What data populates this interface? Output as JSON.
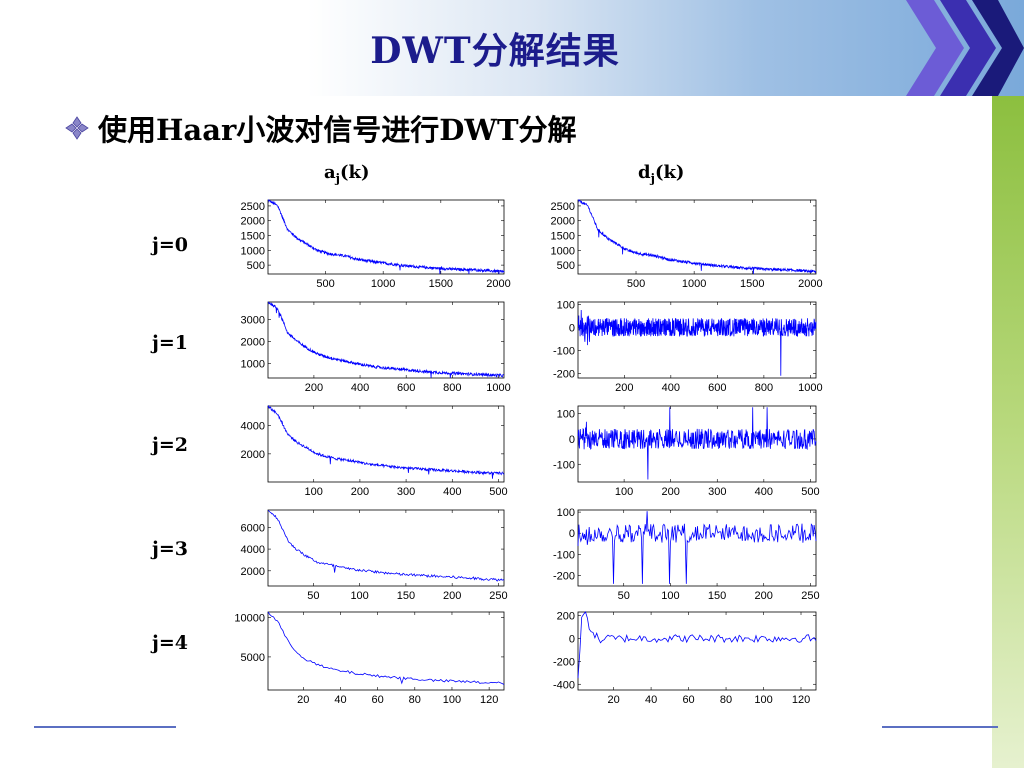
{
  "slide": {
    "title": "DWT分解结果",
    "bullet_text": "使用Haar小波对信号进行DWT分解",
    "column_headers": [
      {
        "base": "a",
        "sub": "j",
        "suffix": "(k)"
      },
      {
        "base": "d",
        "sub": "j",
        "suffix": "(k)"
      }
    ],
    "row_labels": [
      "j=0",
      "j=1",
      "j=2",
      "j=3",
      "j=4"
    ],
    "colors": {
      "title": "#1c1c8c",
      "plot_line": "#0000ff",
      "band": "#7aa9da",
      "stripe": "#8cbf3f",
      "chevron_light": "#6c5cd6",
      "chevron_dark": "#1a1a7a"
    }
  },
  "chart_data": [
    {
      "type": "line",
      "panel": "a0",
      "x_count": 2048,
      "xlim": [
        1,
        2048
      ],
      "xticks": [
        500,
        1000,
        1500,
        2000
      ],
      "yticks": [
        500,
        1000,
        1500,
        2000,
        2500
      ],
      "ylim": [
        200,
        2700
      ],
      "series": [
        {
          "values": [
            2700,
            2500,
            1700,
            1400,
            1200,
            1000,
            900,
            850,
            800,
            700,
            650,
            600,
            560,
            520,
            480,
            450,
            420,
            400,
            380,
            360,
            350,
            340,
            320,
            300,
            280
          ]
        }
      ]
    },
    {
      "type": "line",
      "panel": "d0",
      "x_count": 2048,
      "xlim": [
        1,
        2048
      ],
      "xticks": [
        500,
        1000,
        1500,
        2000
      ],
      "yticks": [
        500,
        1000,
        1500,
        2000,
        2500
      ],
      "ylim": [
        200,
        2700
      ],
      "series": [
        {
          "values": [
            2700,
            2500,
            1700,
            1400,
            1200,
            1000,
            900,
            850,
            800,
            700,
            650,
            600,
            560,
            520,
            480,
            450,
            420,
            400,
            380,
            360,
            350,
            340,
            320,
            300,
            280
          ]
        }
      ]
    },
    {
      "type": "line",
      "panel": "a1",
      "x_count": 1024,
      "xlim": [
        1,
        1024
      ],
      "xticks": [
        200,
        400,
        600,
        800,
        1000
      ],
      "yticks": [
        1000,
        2000,
        3000
      ],
      "ylim": [
        350,
        3800
      ],
      "series": [
        {
          "values": [
            3800,
            3500,
            2400,
            2000,
            1700,
            1450,
            1300,
            1200,
            1100,
            1000,
            920,
            850,
            800,
            760,
            720,
            680,
            640,
            610,
            580,
            560,
            540,
            520,
            500,
            480,
            460
          ]
        }
      ]
    },
    {
      "type": "line",
      "panel": "d1",
      "x_count": 1024,
      "xlim": [
        1,
        1024
      ],
      "xticks": [
        200,
        400,
        600,
        800,
        1000
      ],
      "yticks": [
        100,
        0,
        -100,
        -200
      ],
      "ylim": [
        -220,
        110
      ],
      "series": [
        {
          "values": [
            0
          ]
        }
      ]
    },
    {
      "type": "line",
      "panel": "a2",
      "x_count": 512,
      "xlim": [
        1,
        512
      ],
      "xticks": [
        100,
        200,
        300,
        400,
        500
      ],
      "yticks": [
        2000,
        4000
      ],
      "ylim": [
        0,
        5400
      ],
      "series": [
        {
          "values": [
            5400,
            4800,
            3400,
            2800,
            2400,
            2000,
            1800,
            1650,
            1550,
            1450,
            1300,
            1200,
            1130,
            1060,
            1000,
            950,
            900,
            860,
            820,
            780,
            740,
            700,
            660,
            630,
            600
          ]
        }
      ]
    },
    {
      "type": "line",
      "panel": "d2",
      "x_count": 512,
      "xlim": [
        1,
        512
      ],
      "xticks": [
        100,
        200,
        300,
        400,
        500
      ],
      "yticks": [
        100,
        0,
        -100
      ],
      "ylim": [
        -170,
        130
      ],
      "series": [
        {
          "values": [
            0
          ]
        }
      ]
    },
    {
      "type": "line",
      "panel": "a3",
      "x_count": 256,
      "xlim": [
        1,
        256
      ],
      "xticks": [
        50,
        100,
        150,
        200,
        250
      ],
      "yticks": [
        2000,
        4000,
        6000
      ],
      "ylim": [
        600,
        7600
      ],
      "series": [
        {
          "values": [
            7600,
            6800,
            4800,
            3900,
            3300,
            2800,
            2600,
            2400,
            2200,
            2100,
            2000,
            1900,
            1800,
            1700,
            1650,
            1600,
            1550,
            1500,
            1450,
            1400,
            1350,
            1300,
            1250,
            1200,
            1150
          ]
        }
      ]
    },
    {
      "type": "line",
      "panel": "d3",
      "x_count": 256,
      "xlim": [
        1,
        256
      ],
      "xticks": [
        50,
        100,
        150,
        200,
        250
      ],
      "yticks": [
        100,
        0,
        -100,
        -200
      ],
      "ylim": [
        -250,
        110
      ],
      "series": [
        {
          "values": [
            0
          ]
        }
      ]
    },
    {
      "type": "line",
      "panel": "a4",
      "x_count": 128,
      "xlim": [
        1,
        128
      ],
      "xticks": [
        20,
        40,
        60,
        80,
        100,
        120
      ],
      "yticks": [
        5000,
        10000
      ],
      "ylim": [
        800,
        10700
      ],
      "series": [
        {
          "values": [
            10700,
            9500,
            7000,
            5500,
            4600,
            4000,
            3600,
            3300,
            3100,
            2900,
            2750,
            2600,
            2500,
            2400,
            2300,
            2200,
            2100,
            2000,
            1950,
            1900,
            1850,
            1800,
            1750,
            1700,
            1650
          ]
        }
      ]
    },
    {
      "type": "line",
      "panel": "d4",
      "x_count": 128,
      "xlim": [
        1,
        128
      ],
      "xticks": [
        20,
        40,
        60,
        80,
        100,
        120
      ],
      "yticks": [
        200,
        0,
        -200,
        -400
      ],
      "ylim": [
        -450,
        230
      ],
      "series": [
        {
          "values": [
            -350,
            150,
            230,
            120,
            60,
            20,
            -20,
            -10,
            0,
            10,
            -10,
            0
          ]
        }
      ]
    }
  ]
}
